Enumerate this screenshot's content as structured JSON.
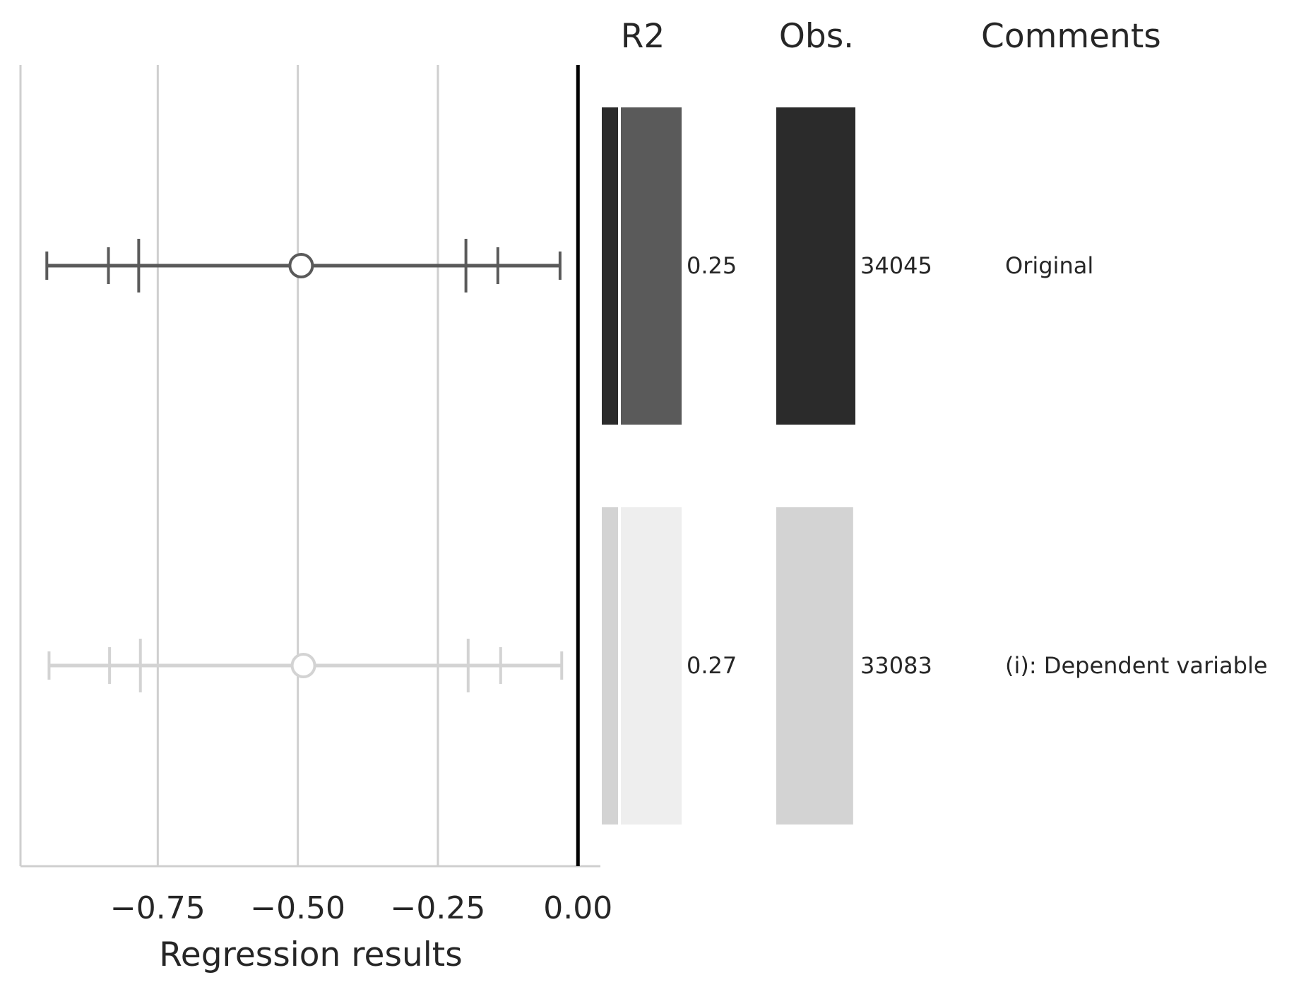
{
  "chart_data": {
    "type": "forest",
    "xlabel": "Regression results",
    "xlim": [
      -0.995,
      0.04
    ],
    "xticks": [
      -0.75,
      -0.5,
      -0.25,
      0.0
    ],
    "xtick_labels": [
      "−0.75",
      "−0.50",
      "−0.25",
      "0.00"
    ],
    "grid": true,
    "reference_line": 0.0,
    "columns": [
      "R2",
      "Obs.",
      "Comments"
    ],
    "rows": [
      {
        "estimate": -0.494,
        "ci_outer": [
          -0.948,
          -0.032
        ],
        "ci_mid": [
          -0.838,
          -0.143
        ],
        "ci_inner": [
          -0.784,
          -0.2
        ],
        "r2": 0.25,
        "r2_label": "0.25",
        "obs": 34045,
        "obs_label": "34045",
        "comment": "Original",
        "color": "#5a5a5a",
        "bar_dark": "#2b2b2b",
        "bar_light": "#5a5a5a",
        "marker_fill": "#ffffff"
      },
      {
        "estimate": -0.49,
        "ci_outer": [
          -0.944,
          -0.029
        ],
        "ci_mid": [
          -0.836,
          -0.138
        ],
        "ci_inner": [
          -0.781,
          -0.196
        ],
        "r2": 0.27,
        "r2_label": "0.27",
        "obs": 33083,
        "obs_label": "33083",
        "comment": "(i): Dependent variable",
        "color": "#d3d3d3",
        "bar_dark": "#d3d3d3",
        "bar_light": "#eeeeee",
        "marker_fill": "#ffffff"
      }
    ],
    "obs_max": 34045
  },
  "colors": {
    "grid": "#cfcfcf",
    "axis": "#cfcfcf",
    "zero_line": "#000000",
    "text": "#262626"
  }
}
